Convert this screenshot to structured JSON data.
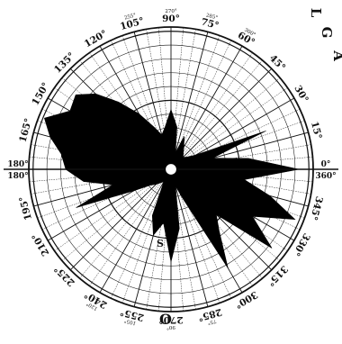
{
  "chart_data": {
    "type": "polar-area",
    "title": "",
    "angle_unit": "degrees",
    "angular_ticks": [
      {
        "deg": 0,
        "label": "0°",
        "sub": ""
      },
      {
        "deg": 15,
        "label": "15°",
        "sub": ""
      },
      {
        "deg": 30,
        "label": "30°",
        "sub": ""
      },
      {
        "deg": 45,
        "label": "45°",
        "sub": ""
      },
      {
        "deg": 60,
        "label": "60°",
        "sub": "300°"
      },
      {
        "deg": 75,
        "label": "75°",
        "sub": "285°"
      },
      {
        "deg": 90,
        "label": "90°",
        "sub": "270°"
      },
      {
        "deg": 105,
        "label": "105°",
        "sub": "255°"
      },
      {
        "deg": 120,
        "label": "120°",
        "sub": ""
      },
      {
        "deg": 135,
        "label": "135°",
        "sub": ""
      },
      {
        "deg": 150,
        "label": "150°",
        "sub": ""
      },
      {
        "deg": 165,
        "label": "165°",
        "sub": ""
      },
      {
        "deg": 180,
        "label": "180°",
        "sub": ""
      },
      {
        "deg": 195,
        "label": "195°",
        "sub": ""
      },
      {
        "deg": 210,
        "label": "210°",
        "sub": ""
      },
      {
        "deg": 225,
        "label": "225°",
        "sub": ""
      },
      {
        "deg": 240,
        "label": "240°",
        "sub": "120°"
      },
      {
        "deg": 255,
        "label": "255°",
        "sub": "105°"
      },
      {
        "deg": 270,
        "label": "270°",
        "sub": "90°"
      },
      {
        "deg": 285,
        "label": "285°",
        "sub": "75°"
      },
      {
        "deg": 300,
        "label": "300°",
        "sub": ""
      },
      {
        "deg": 315,
        "label": "315°",
        "sub": ""
      },
      {
        "deg": 330,
        "label": "330°",
        "sub": ""
      },
      {
        "deg": 345,
        "label": "345°",
        "sub": ""
      },
      {
        "deg": 360,
        "label": "360°",
        "sub": ""
      }
    ],
    "side_labels": {
      "left_main": "180°",
      "left_sub": "180°",
      "right_main": "0°",
      "right_sub": "360°"
    },
    "edge_text": [
      "L",
      "G",
      "A"
    ],
    "inner_marks": {
      "upper": "S",
      "lower": "O"
    },
    "radial_range": [
      0,
      1
    ],
    "ring_count": 10,
    "pattern": {
      "angles": [
        0,
        8,
        15,
        22,
        30,
        38,
        45,
        52,
        60,
        68,
        75,
        82,
        90,
        98,
        105,
        112,
        120,
        128,
        135,
        142,
        150,
        158,
        165,
        172,
        180,
        188,
        195,
        202,
        210,
        218,
        225,
        232,
        240,
        248,
        255,
        262,
        270,
        278,
        285,
        292,
        300,
        308,
        315,
        322,
        330,
        338,
        345,
        352
      ],
      "radius": [
        0.9,
        0.55,
        0.3,
        0.72,
        0.2,
        0.14,
        0.12,
        0.14,
        0.18,
        0.25,
        0.12,
        0.3,
        0.42,
        0.3,
        0.25,
        0.32,
        0.45,
        0.6,
        0.75,
        0.85,
        0.82,
        0.96,
        0.88,
        0.78,
        0.74,
        0.62,
        0.42,
        0.72,
        0.3,
        0.18,
        0.15,
        0.12,
        0.1,
        0.35,
        0.48,
        0.38,
        0.65,
        0.42,
        0.12,
        0.22,
        0.8,
        0.55,
        0.45,
        0.9,
        0.66,
        0.94,
        0.72,
        0.52
      ]
    }
  }
}
